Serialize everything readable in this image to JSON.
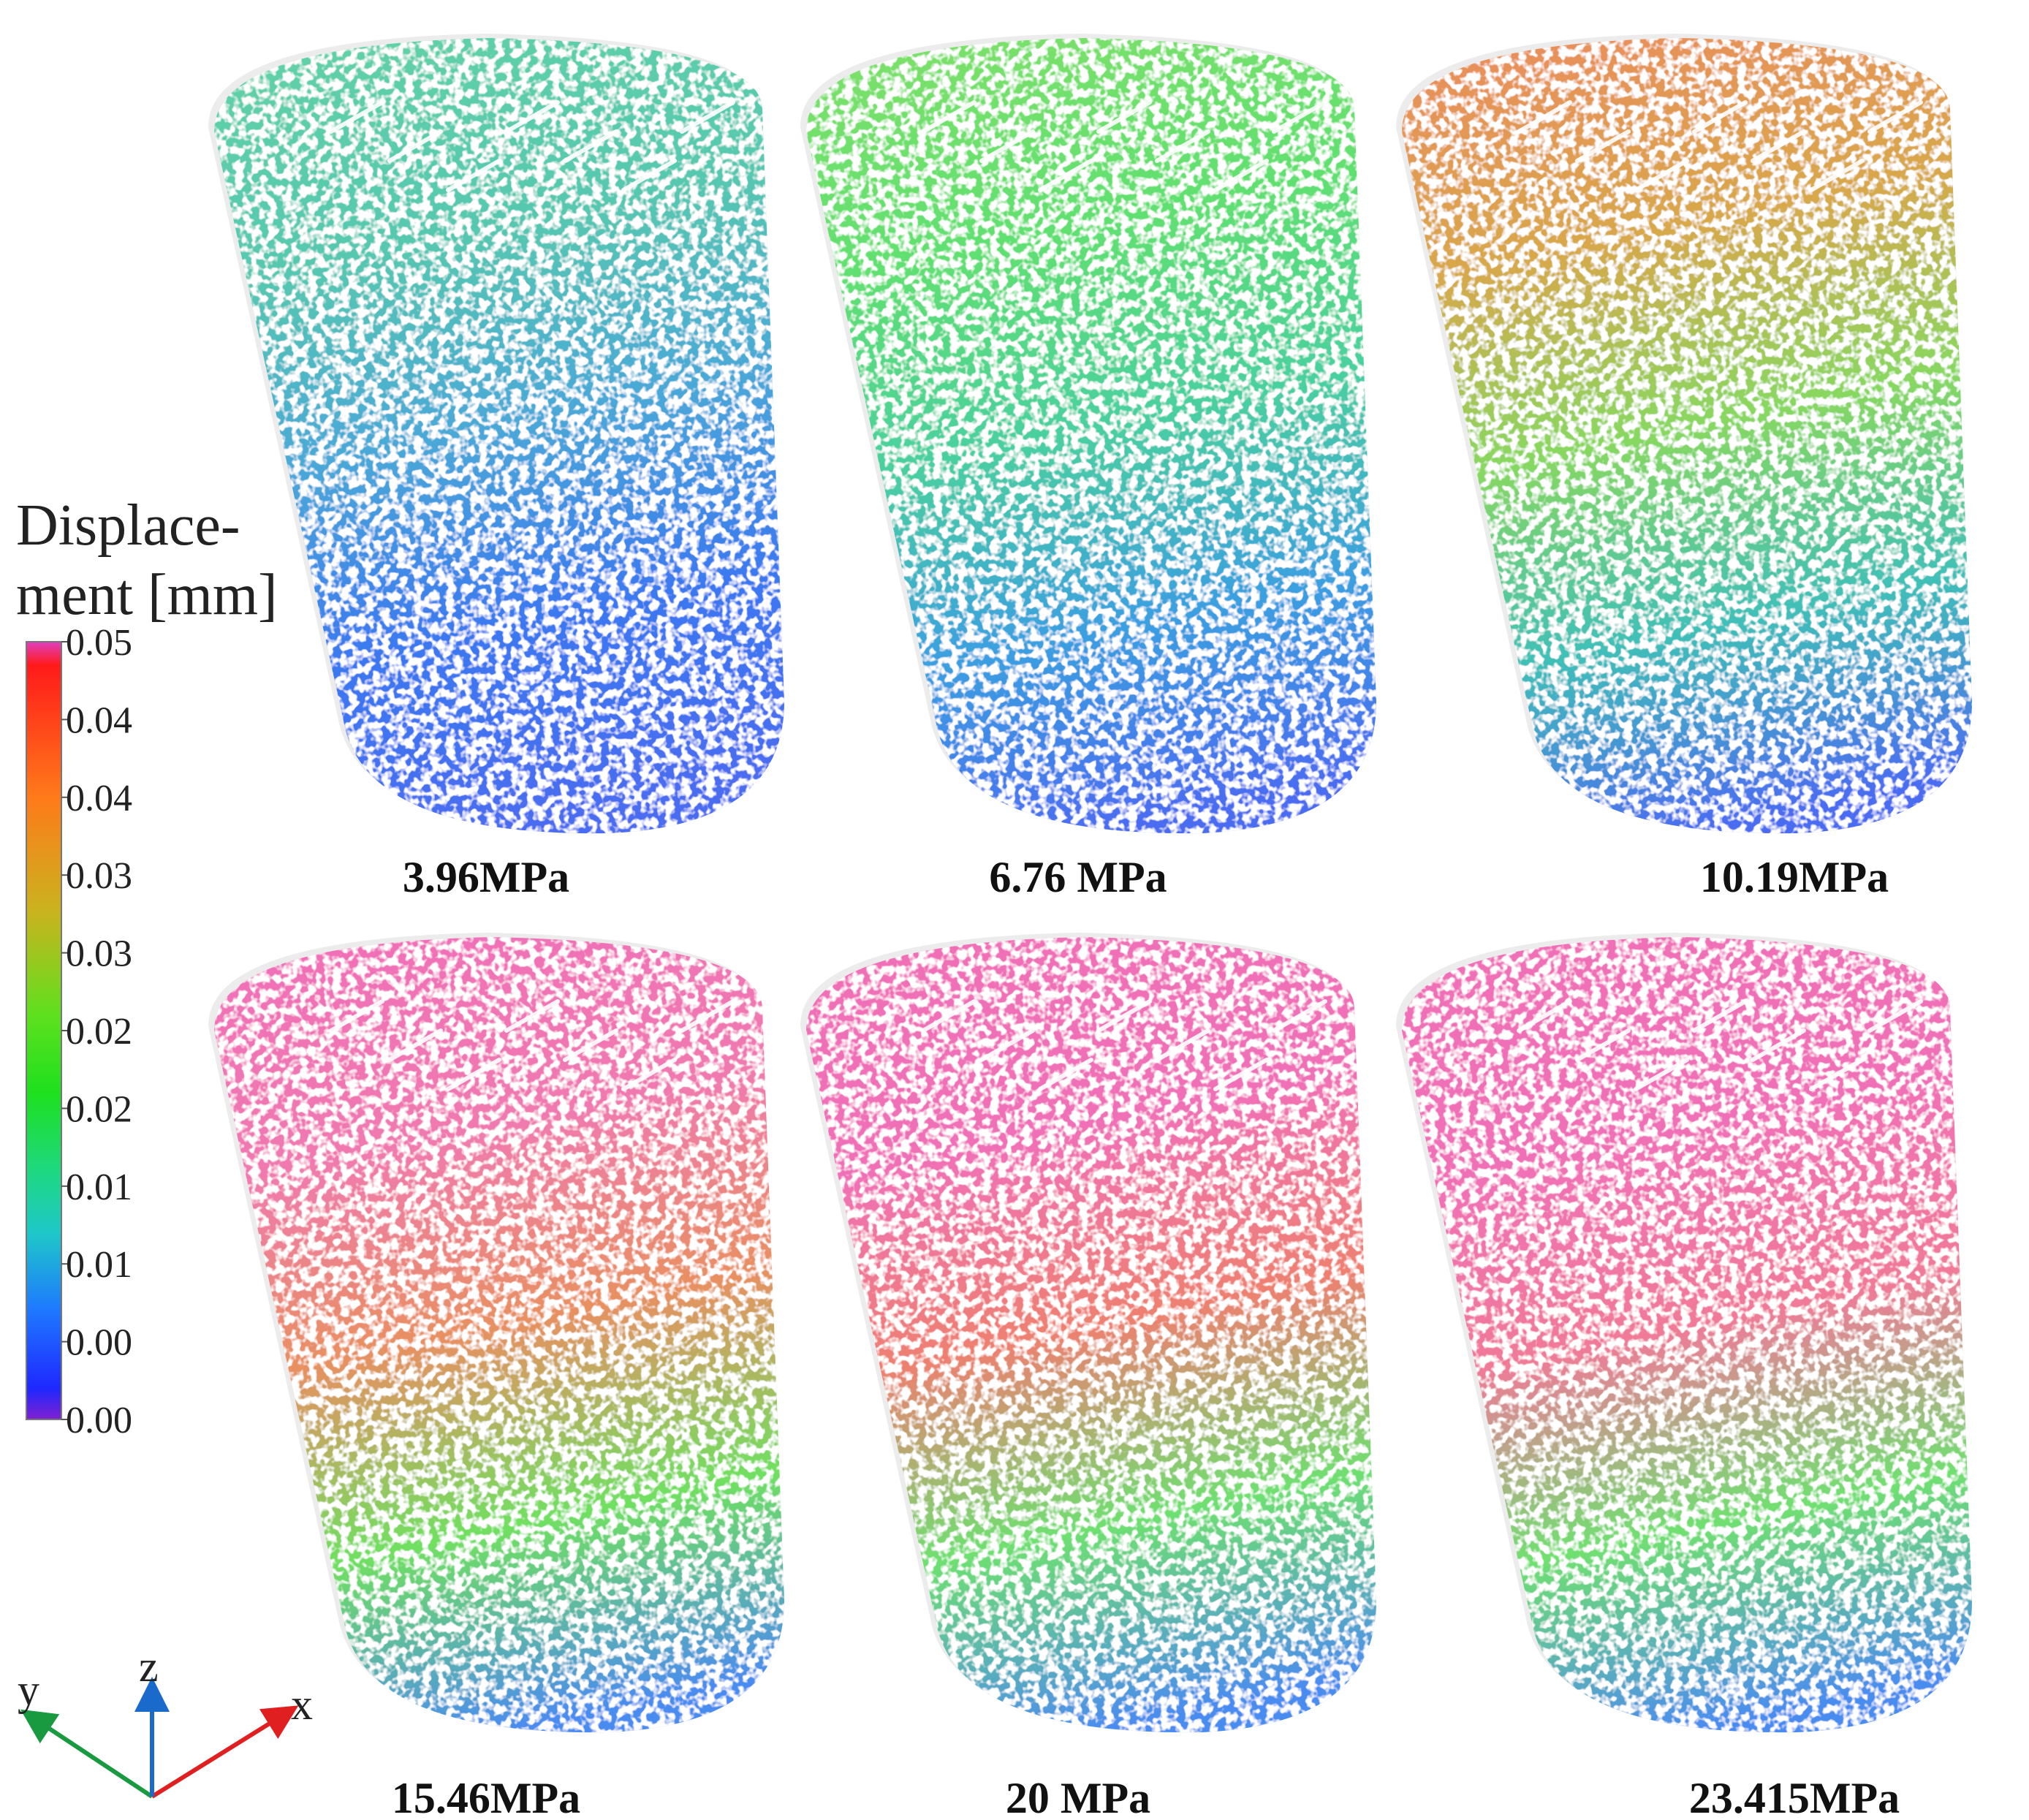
{
  "legend": {
    "title_line1": "Displace-",
    "title_line2": "ment [mm]",
    "ticks": [
      "0.05",
      "0.04",
      "0.04",
      "0.03",
      "0.03",
      "0.02",
      "0.02",
      "0.01",
      "0.01",
      "0.00",
      "0.00"
    ],
    "colors": [
      "#e040c0",
      "#ff1a1a",
      "#ff7a1a",
      "#c8b41e",
      "#5ee01e",
      "#1ee01e",
      "#1ed880",
      "#1ec8c8",
      "#1e78ff",
      "#1e28ff",
      "#8020d0"
    ]
  },
  "panels": [
    {
      "label": "3.96MPa",
      "stress_mpa": 3.96
    },
    {
      "label": "6.76 MPa",
      "stress_mpa": 6.76
    },
    {
      "label": "10.19MPa",
      "stress_mpa": 10.19
    },
    {
      "label": "15.46MPa",
      "stress_mpa": 15.46
    },
    {
      "label": "20 MPa",
      "stress_mpa": 20
    },
    {
      "label": "23.415MPa",
      "stress_mpa": 23.415
    }
  ],
  "axes": {
    "y": "y",
    "z": "z",
    "x": "x",
    "colors": {
      "x": "#e02020",
      "y": "#1a9a40",
      "z": "#1a6acc"
    }
  }
}
